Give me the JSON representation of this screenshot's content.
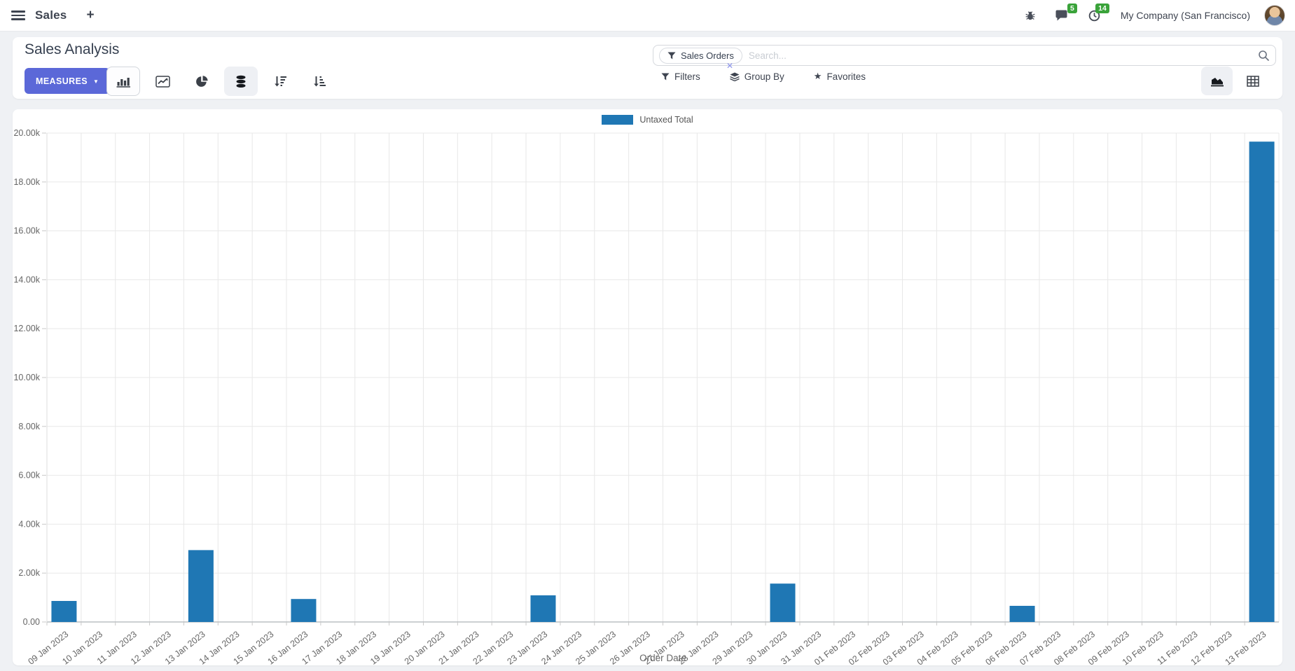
{
  "navbar": {
    "app_name": "Sales",
    "new_tab_label": "+",
    "systray": {
      "messages_count": "5",
      "activities_count": "14",
      "company": "My Company (San Francisco)"
    }
  },
  "control_panel": {
    "title": "Sales Analysis",
    "measures_label": "MEASURES",
    "caret": "▼",
    "search": {
      "facet_label": "Sales Orders",
      "facet_remove": "✕",
      "placeholder": "Search..."
    },
    "dropdowns": {
      "filters": "Filters",
      "group_by": "Group By",
      "favorites": "Favorites",
      "star": "★"
    }
  },
  "chart_data": {
    "type": "bar",
    "title": "",
    "xlabel": "Order Date",
    "ylabel": "",
    "ylim": [
      0,
      20000
    ],
    "ytick_step": 2000,
    "grid": true,
    "legend_position": "top",
    "series": [
      {
        "name": "Untaxed Total",
        "color": "#1f77b4"
      }
    ],
    "categories": [
      "09 Jan 2023",
      "10 Jan 2023",
      "11 Jan 2023",
      "12 Jan 2023",
      "13 Jan 2023",
      "14 Jan 2023",
      "15 Jan 2023",
      "16 Jan 2023",
      "17 Jan 2023",
      "18 Jan 2023",
      "19 Jan 2023",
      "20 Jan 2023",
      "21 Jan 2023",
      "22 Jan 2023",
      "23 Jan 2023",
      "24 Jan 2023",
      "25 Jan 2023",
      "26 Jan 2023",
      "27 Jan 2023",
      "28 Jan 2023",
      "29 Jan 2023",
      "30 Jan 2023",
      "31 Jan 2023",
      "01 Feb 2023",
      "02 Feb 2023",
      "03 Feb 2023",
      "04 Feb 2023",
      "05 Feb 2023",
      "06 Feb 2023",
      "07 Feb 2023",
      "08 Feb 2023",
      "09 Feb 2023",
      "10 Feb 2023",
      "11 Feb 2023",
      "12 Feb 2023",
      "13 Feb 2023"
    ],
    "values": [
      860,
      0,
      0,
      0,
      2940,
      0,
      0,
      940,
      0,
      0,
      0,
      0,
      0,
      0,
      1090,
      0,
      0,
      0,
      0,
      0,
      0,
      1570,
      0,
      0,
      0,
      0,
      0,
      0,
      660,
      0,
      0,
      0,
      0,
      0,
      0,
      19650
    ]
  },
  "colors": {
    "bar": "#1f77b4",
    "primary_button": "#5b68d8",
    "badge_green": "#3aa33a"
  }
}
